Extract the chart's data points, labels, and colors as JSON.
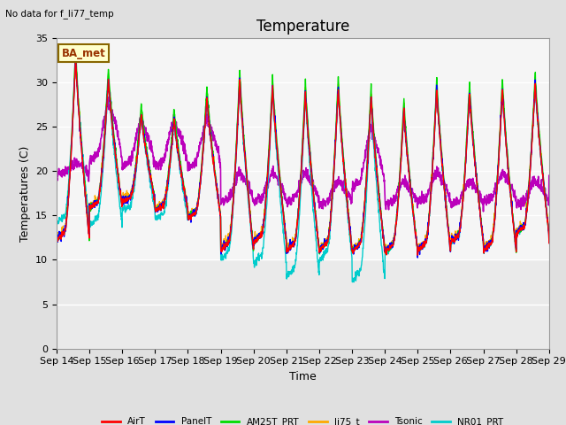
{
  "title": "Temperature",
  "xlabel": "Time",
  "ylabel": "Temperatures (C)",
  "no_data_text": "No data for f_li77_temp",
  "ba_met_label": "BA_met",
  "ylim": [
    0,
    35
  ],
  "yticks": [
    0,
    5,
    10,
    15,
    20,
    25,
    30,
    35
  ],
  "x_labels": [
    "Sep 14",
    "Sep 15",
    "Sep 16",
    "Sep 17",
    "Sep 18",
    "Sep 19",
    "Sep 20",
    "Sep 21",
    "Sep 22",
    "Sep 23",
    "Sep 24",
    "Sep 25",
    "Sep 26",
    "Sep 27",
    "Sep 28",
    "Sep 29"
  ],
  "series": {
    "AirT": {
      "color": "#ff0000",
      "lw": 1.0
    },
    "PanelT": {
      "color": "#0000ff",
      "lw": 1.0
    },
    "AM25T_PRT": {
      "color": "#00dd00",
      "lw": 1.0
    },
    "li75_t": {
      "color": "#ffaa00",
      "lw": 1.0
    },
    "Tsonic": {
      "color": "#bb00bb",
      "lw": 1.2
    },
    "NR01_PRT": {
      "color": "#00cccc",
      "lw": 1.0
    }
  },
  "bg_color": "#e0e0e0",
  "plot_bg_light": "#f5f5f5",
  "plot_bg_dark": "#e0e0e0",
  "grid_color": "#ffffff",
  "title_fontsize": 12,
  "label_fontsize": 9,
  "tick_fontsize": 8,
  "figsize": [
    6.4,
    4.8
  ],
  "dpi": 100
}
